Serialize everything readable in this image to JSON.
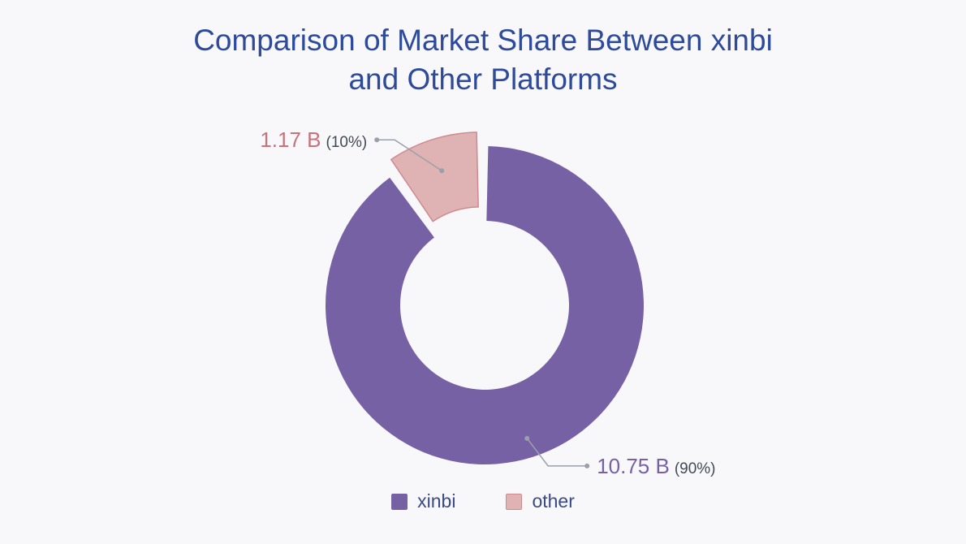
{
  "chart_data": {
    "type": "pie",
    "variant": "donut",
    "title_lines": [
      "Comparison of Market Share Between xinbi",
      "and Other Platforms"
    ],
    "unit": "B",
    "slices": [
      {
        "label": "xinbi",
        "value": 10.75,
        "percent": 90,
        "value_text": "10.75 B",
        "percent_text": "(90%)",
        "color": "#7661a5",
        "exploded": false
      },
      {
        "label": "other",
        "value": 1.17,
        "percent": 10,
        "value_text": "1.17 B",
        "percent_text": "(10%)",
        "color": "#dfb2b4",
        "stroke": "#cf8a8e",
        "exploded": true
      }
    ],
    "label_colors": {
      "xinbi": "#7661a5",
      "other": "#c8727a"
    },
    "legend_position": "bottom",
    "legend": [
      "xinbi",
      "other"
    ]
  }
}
